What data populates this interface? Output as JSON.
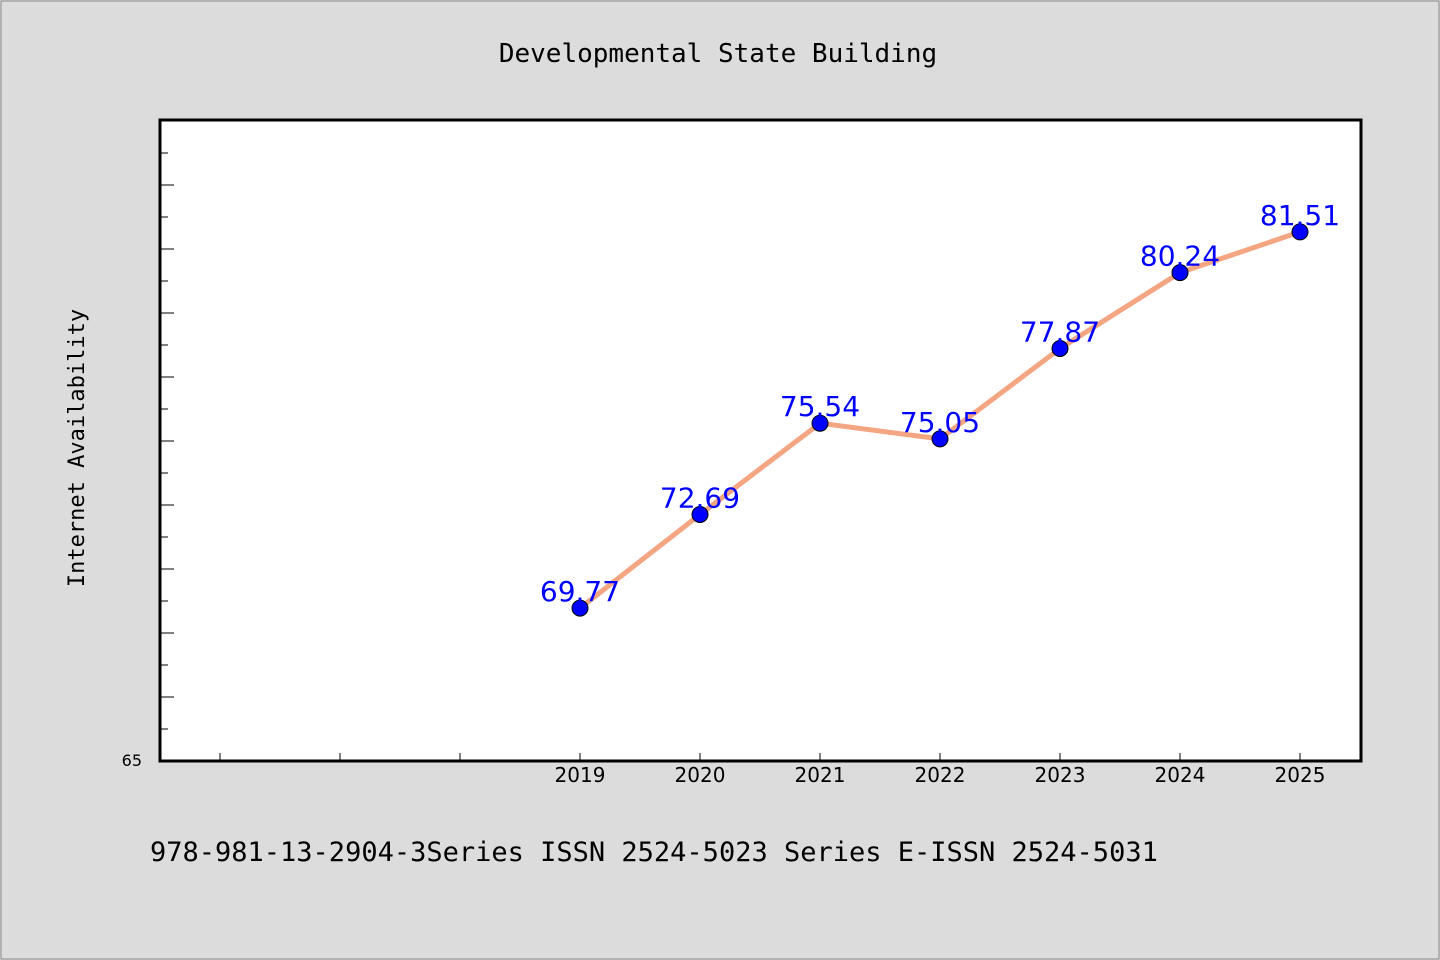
{
  "chart_data": {
    "type": "line",
    "title": "Developmental State Building",
    "xlabel": "",
    "ylabel": "Internet Availability",
    "x": [
      "2019",
      "2020",
      "2021",
      "2022",
      "2023",
      "2024",
      "2025"
    ],
    "series": [
      {
        "values": [
          69.77,
          72.69,
          75.54,
          75.05,
          77.87,
          80.24,
          81.51
        ],
        "data_labels": [
          "69.77",
          "72.69",
          "75.54",
          "75.05",
          "77.87",
          "80.24",
          "81.51"
        ],
        "line_color": "#f4a582",
        "marker_color": "#0000ff",
        "label_color": "#0000ff"
      }
    ],
    "ytick_labels": [
      "65"
    ],
    "ylim": [
      65,
      85
    ],
    "grid": false,
    "legend": false
  },
  "footer": {
    "text": "978-981-13-2904-3Series ISSN 2524-5023 Series E-ISSN 2524-5031"
  },
  "colors": {
    "background": "#dcdcdc",
    "plot_background": "#ffffff",
    "axis": "#000000"
  }
}
